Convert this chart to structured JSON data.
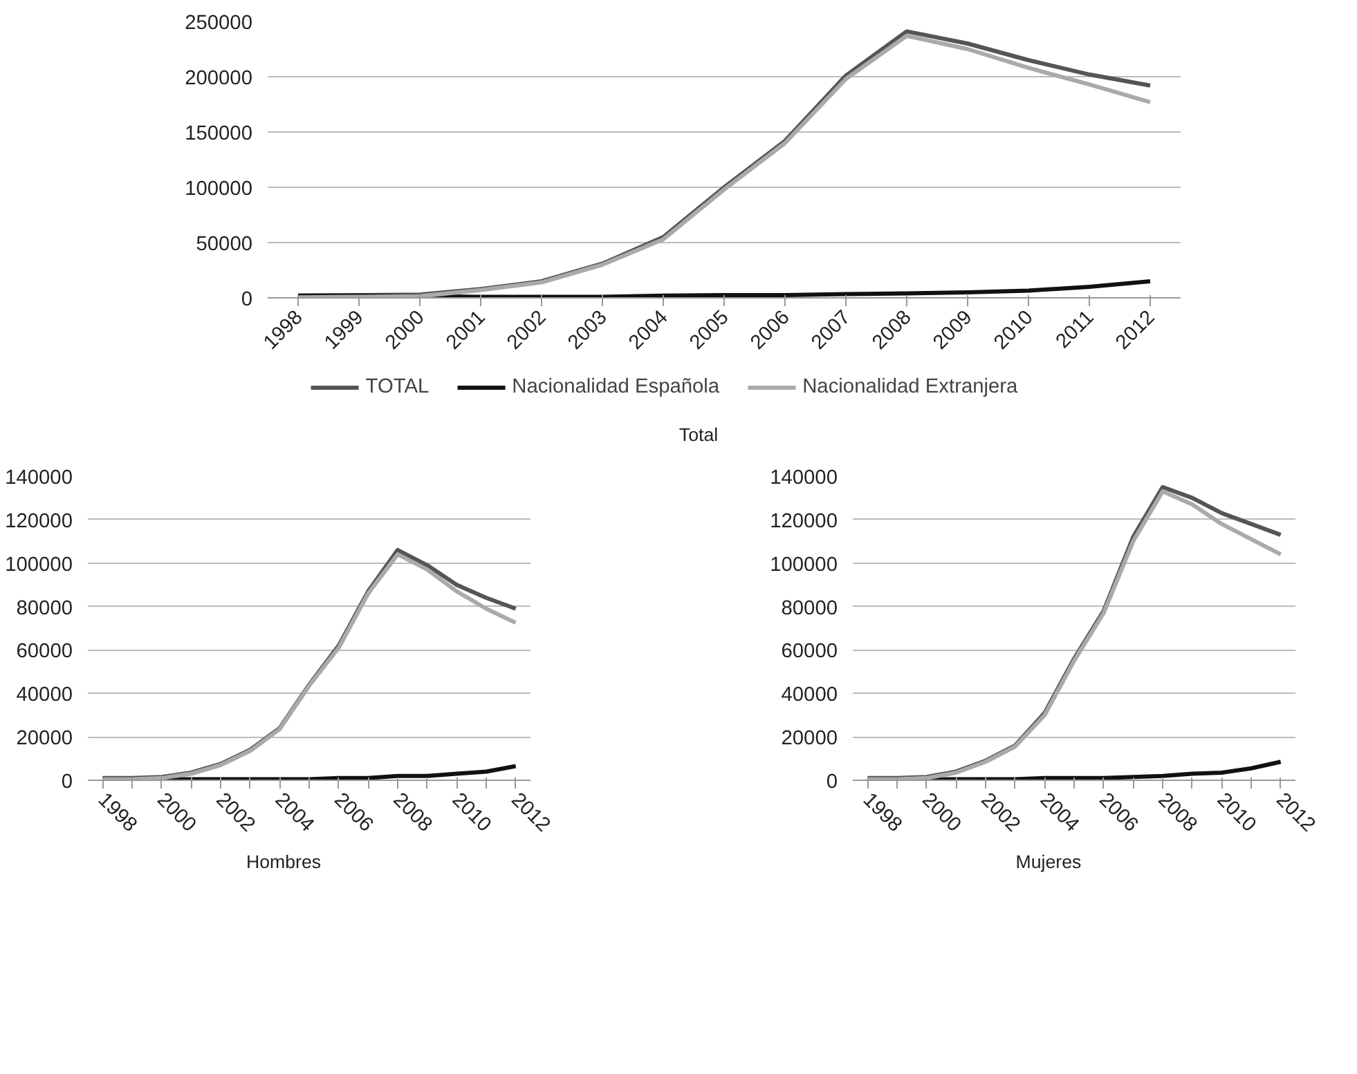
{
  "chart_data": [
    {
      "type": "line",
      "title": "Total",
      "categories": [
        "1998",
        "1999",
        "2000",
        "2001",
        "2002",
        "2003",
        "2004",
        "2005",
        "2006",
        "2007",
        "2008",
        "2009",
        "2010",
        "2011",
        "2012"
      ],
      "ylim": [
        0,
        250000
      ],
      "yticks": [
        0,
        50000,
        100000,
        150000,
        200000,
        250000
      ],
      "grid": "y",
      "legend": "bottom",
      "series": [
        {
          "name": "TOTAL",
          "color": "#555555",
          "values": [
            2000,
            2500,
            3000,
            8000,
            15000,
            31000,
            55000,
            100000,
            142000,
            201000,
            241000,
            230000,
            215000,
            202000,
            192000
          ]
        },
        {
          "name": "Nacionalidad Española",
          "color": "#111111",
          "values": [
            2000,
            2000,
            1500,
            1000,
            1000,
            1000,
            2000,
            2500,
            2500,
            3500,
            4000,
            5000,
            6500,
            10000,
            15000
          ]
        },
        {
          "name": "Nacionalidad Extranjera",
          "color": "#aaaaaa",
          "values": [
            500,
            1000,
            1500,
            7000,
            14000,
            30000,
            53000,
            98000,
            140000,
            198000,
            237000,
            225000,
            208000,
            193000,
            177000
          ]
        }
      ]
    },
    {
      "type": "line",
      "title": "Hombres",
      "categories": [
        "1998",
        null,
        "2000",
        null,
        "2002",
        null,
        "2004",
        null,
        "2006",
        null,
        "2008",
        null,
        "2010",
        null,
        "2012"
      ],
      "ylim": [
        0,
        140000
      ],
      "yticks": [
        0,
        20000,
        40000,
        60000,
        80000,
        100000,
        120000,
        140000
      ],
      "grid": "y",
      "series": [
        {
          "color": "#555555",
          "values": [
            1000,
            1000,
            1500,
            3500,
            7500,
            14000,
            24000,
            44000,
            62000,
            87000,
            106000,
            99000,
            90000,
            84000,
            79000
          ]
        },
        {
          "color": "#111111",
          "values": [
            500,
            500,
            500,
            500,
            500,
            500,
            500,
            500,
            1000,
            1000,
            2000,
            2000,
            3000,
            4000,
            6500
          ]
        },
        {
          "color": "#aaaaaa",
          "values": [
            500,
            500,
            1000,
            3000,
            7000,
            13500,
            23500,
            43500,
            61000,
            86000,
            104000,
            97000,
            87000,
            79000,
            72500
          ]
        }
      ]
    },
    {
      "type": "line",
      "title": "Mujeres",
      "categories": [
        "1998",
        null,
        "2000",
        null,
        "2002",
        null,
        "2004",
        null,
        "2006",
        null,
        "2008",
        null,
        "2010",
        null,
        "2012"
      ],
      "ylim": [
        0,
        140000
      ],
      "yticks": [
        0,
        20000,
        40000,
        60000,
        80000,
        100000,
        120000,
        140000
      ],
      "grid": "y",
      "series": [
        {
          "color": "#555555",
          "values": [
            1000,
            1000,
            1500,
            4000,
            9000,
            16000,
            31000,
            56000,
            78000,
            112000,
            135000,
            130000,
            123000,
            118000,
            113000
          ]
        },
        {
          "color": "#111111",
          "values": [
            500,
            500,
            500,
            500,
            500,
            500,
            1000,
            1000,
            1000,
            1500,
            2000,
            3000,
            3500,
            5500,
            8500
          ]
        },
        {
          "color": "#aaaaaa",
          "values": [
            500,
            500,
            1000,
            3500,
            8500,
            15500,
            30000,
            55000,
            77000,
            110000,
            133000,
            127000,
            118000,
            111000,
            104000
          ]
        }
      ]
    }
  ]
}
